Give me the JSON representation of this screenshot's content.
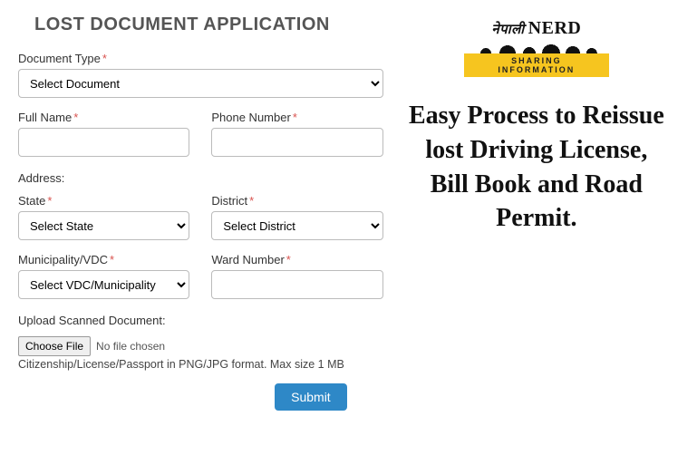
{
  "form": {
    "title": "LOST DOCUMENT APPLICATION",
    "document_type_label": "Document Type",
    "document_type_value": "Select Document",
    "full_name_label": "Full Name",
    "full_name_value": "",
    "phone_label": "Phone Number",
    "phone_value": "",
    "address_label": "Address:",
    "state_label": "State",
    "state_value": "Select State",
    "district_label": "District",
    "district_value": "Select District",
    "muni_label": "Municipality/VDC",
    "muni_value": "Select VDC/Municipality",
    "ward_label": "Ward Number",
    "ward_value": "",
    "upload_label": "Upload Scanned Document:",
    "file_button": "Choose File",
    "file_status": "No file chosen",
    "file_hint": "Citizenship/License/Passport in PNG/JPG format. Max size 1 MB",
    "submit_label": "Submit",
    "required_mark": "*"
  },
  "promo": {
    "logo_text_1": "नेपाली",
    "logo_text_2": "NERD",
    "logo_tagline": "SHARING INFORMATION",
    "headline": "Easy Process to Reissue lost Driving License,\nBill Book and Road Permit."
  },
  "colors": {
    "accent": "#2e88c7",
    "required": "#d9534f",
    "logo_bar": "#f6c51f"
  }
}
